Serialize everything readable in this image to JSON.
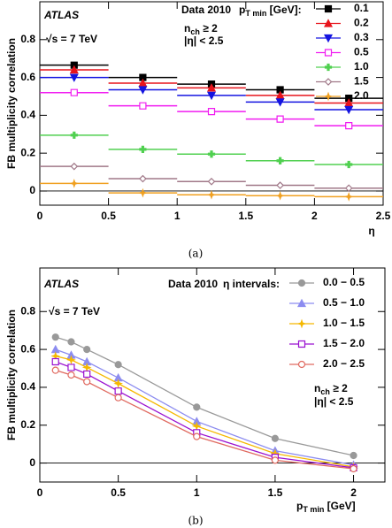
{
  "chart_data": [
    {
      "type": "binned-points",
      "experiment": "ATLAS",
      "energy": "√s = 7 TeV",
      "dataset": "Data 2010",
      "legend_title": [
        "p",
        "T min",
        " [GeV]:"
      ],
      "selection": [
        [
          "n",
          "ch",
          " ≥ 2"
        ],
        "|η| < 2.5"
      ],
      "y_label": "FB multiplicity correlation",
      "x_label": "η",
      "caption": "(a)",
      "x": [
        0.25,
        0.75,
        1.25,
        1.75,
        2.25
      ],
      "bins": [
        0,
        0.5,
        1,
        1.5,
        2,
        2.5
      ],
      "xlim": [
        0,
        2.5
      ],
      "xticks": [
        0,
        0.5,
        1,
        1.5,
        2,
        2.5
      ],
      "ylim": [
        -0.075,
        1.0
      ],
      "yticks": [
        0,
        0.2,
        0.4,
        0.6,
        0.8
      ],
      "series": [
        {
          "name": "0.1",
          "color": "#000000",
          "marker": "square",
          "values": [
            0.665,
            0.6,
            0.565,
            0.535,
            0.49
          ]
        },
        {
          "name": "0.2",
          "color": "#e8141c",
          "marker": "triangle-up",
          "values": [
            0.64,
            0.57,
            0.545,
            0.505,
            0.465
          ]
        },
        {
          "name": "0.3",
          "color": "#1414e0",
          "marker": "triangle-down",
          "values": [
            0.6,
            0.535,
            0.505,
            0.47,
            0.43
          ]
        },
        {
          "name": "0.5",
          "color": "#f01cf0",
          "marker": "open-square",
          "values": [
            0.52,
            0.45,
            0.42,
            0.38,
            0.345
          ]
        },
        {
          "name": "1.0",
          "color": "#50d050",
          "marker": "cross",
          "values": [
            0.295,
            0.22,
            0.195,
            0.16,
            0.14
          ]
        },
        {
          "name": "1.5",
          "color": "#a07888",
          "marker": "diamond",
          "values": [
            0.13,
            0.065,
            0.05,
            0.03,
            0.015
          ]
        },
        {
          "name": "2.0",
          "color": "#f0a020",
          "marker": "star",
          "values": [
            0.04,
            -0.01,
            -0.02,
            -0.025,
            -0.03
          ]
        }
      ]
    },
    {
      "type": "line",
      "experiment": "ATLAS",
      "energy": "√s = 7 TeV",
      "dataset": "Data 2010",
      "legend_title": "η intervals:",
      "selection": [
        [
          "n",
          "ch",
          " ≥ 2"
        ],
        "|η| < 2.5"
      ],
      "y_label": "FB multiplicity correlation",
      "x_label": [
        "p",
        "T min",
        "  [GeV]"
      ],
      "caption": "(b)",
      "x": [
        0.1,
        0.2,
        0.3,
        0.5,
        1.0,
        1.5,
        2.0
      ],
      "xlim": [
        0,
        2.2
      ],
      "xticks": [
        0,
        0.5,
        1,
        1.5,
        2
      ],
      "ylim": [
        -0.1,
        1.03
      ],
      "yticks": [
        0,
        0.2,
        0.4,
        0.6,
        0.8
      ],
      "series": [
        {
          "name": "0.0 − 0.5",
          "color": "#999999",
          "marker": "circle",
          "values": [
            0.665,
            0.64,
            0.6,
            0.52,
            0.295,
            0.13,
            0.04
          ]
        },
        {
          "name": "0.5 − 1.0",
          "color": "#8c8cf0",
          "marker": "triangle-up",
          "values": [
            0.6,
            0.57,
            0.535,
            0.45,
            0.22,
            0.065,
            -0.01
          ]
        },
        {
          "name": "1.0 − 1.5",
          "color": "#f5b800",
          "marker": "star",
          "values": [
            0.565,
            0.545,
            0.505,
            0.42,
            0.195,
            0.05,
            -0.02
          ]
        },
        {
          "name": "1.5 − 2.0",
          "color": "#9a10d0",
          "marker": "open-square",
          "values": [
            0.535,
            0.505,
            0.47,
            0.38,
            0.16,
            0.03,
            -0.025
          ]
        },
        {
          "name": "2.0 − 2.5",
          "color": "#e06a60",
          "marker": "open-circle",
          "values": [
            0.49,
            0.465,
            0.43,
            0.345,
            0.14,
            0.015,
            -0.03
          ]
        }
      ]
    }
  ]
}
